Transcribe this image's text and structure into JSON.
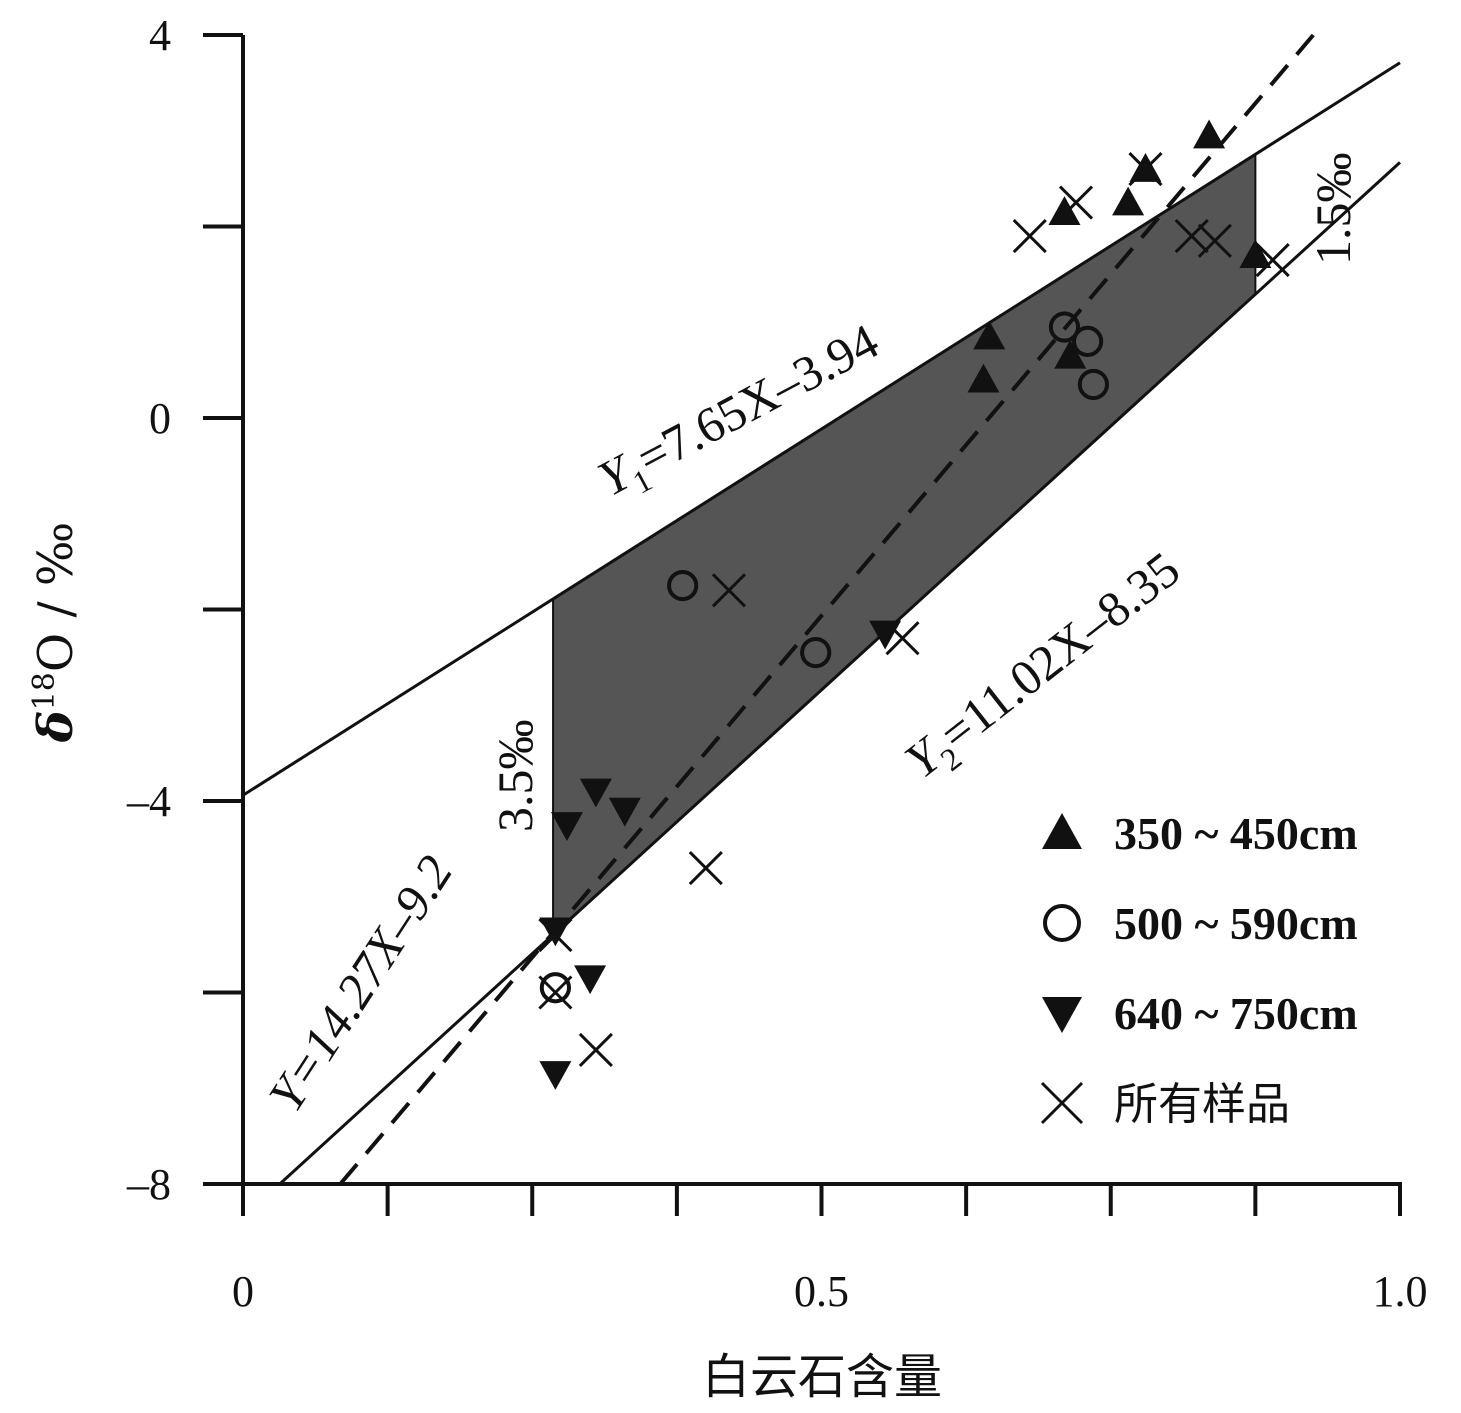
{
  "chart_data": {
    "type": "scatter",
    "title": "",
    "xlabel": "白云石含量",
    "ylabel": "δ¹⁸O / ‰",
    "xlim": [
      0,
      1.0
    ],
    "ylim": [
      -8,
      4
    ],
    "x_ticks": [
      0,
      0.5,
      1.0
    ],
    "x_tick_labels": [
      "0",
      "0.5",
      "1.0"
    ],
    "y_ticks": [
      -8,
      -4,
      0,
      4
    ],
    "y_tick_labels": [
      "–8",
      "–4",
      "0",
      "4"
    ],
    "grid": false,
    "legend_position": "bottom-right",
    "series": [
      {
        "name": "350 ~ 450cm",
        "marker": "triangle-up",
        "points": [
          [
            0.64,
            0.4
          ],
          [
            0.645,
            0.85
          ],
          [
            0.71,
            2.15
          ],
          [
            0.715,
            0.65
          ],
          [
            0.765,
            2.25
          ],
          [
            0.78,
            2.6
          ],
          [
            0.835,
            2.95
          ],
          [
            0.875,
            1.7
          ]
        ]
      },
      {
        "name": "500 ~ 590cm",
        "marker": "circle",
        "points": [
          [
            0.38,
            -1.75
          ],
          [
            0.495,
            -2.45
          ],
          [
            0.71,
            0.95
          ],
          [
            0.73,
            0.8
          ],
          [
            0.735,
            0.35
          ],
          [
            0.27,
            -5.95
          ]
        ]
      },
      {
        "name": "640 ~ 750cm",
        "marker": "triangle-down",
        "points": [
          [
            0.27,
            -5.35
          ],
          [
            0.28,
            -4.25
          ],
          [
            0.305,
            -3.9
          ],
          [
            0.33,
            -4.1
          ],
          [
            0.3,
            -5.85
          ],
          [
            0.27,
            -6.85
          ],
          [
            0.555,
            -2.25
          ]
        ]
      },
      {
        "name": "所有样品",
        "marker": "x",
        "points": [
          [
            0.42,
            -1.8
          ],
          [
            0.4,
            -4.7
          ],
          [
            0.305,
            -6.6
          ],
          [
            0.27,
            -5.4
          ],
          [
            0.68,
            1.9
          ],
          [
            0.72,
            2.25
          ],
          [
            0.78,
            2.6
          ],
          [
            0.84,
            1.85
          ],
          [
            0.82,
            1.9
          ],
          [
            0.89,
            1.65
          ],
          [
            0.57,
            -2.3
          ],
          [
            0.27,
            -6.0
          ]
        ]
      }
    ],
    "lines": [
      {
        "label": "Y1=7.65X–3.94",
        "slope": 7.65,
        "intercept": -3.94,
        "style": "solid"
      },
      {
        "label": "Y2=11.02X–8.35",
        "slope": 11.02,
        "intercept": -8.35,
        "style": "solid"
      },
      {
        "label": "Y=14.27X–9.2",
        "slope": 14.27,
        "intercept": -9.2,
        "style": "dashed"
      }
    ],
    "shaded_region": {
      "x_range": [
        0.268,
        0.875
      ],
      "between": [
        "Y1=7.65X–3.94",
        "Y2=11.02X–8.35"
      ],
      "color": "#555555"
    },
    "annotations": [
      "3.5‰",
      "1.5‰"
    ]
  },
  "text": {
    "xlabel": "白云石含量",
    "ylabel_delta": "δ",
    "ylabel_sup": "18",
    "ylabel_rest": "O / ‰",
    "y1_eq_main": "Y",
    "y1_eq_sub": "1",
    "y1_eq_rest": "=7.65X–3.94",
    "y2_eq_main": "Y",
    "y2_eq_sub": "2",
    "y2_eq_rest": "=11.02X–8.35",
    "y_eq": "Y=14.27X–9.2",
    "ann_35": "3.5‰",
    "ann_15": "1.5‰"
  }
}
